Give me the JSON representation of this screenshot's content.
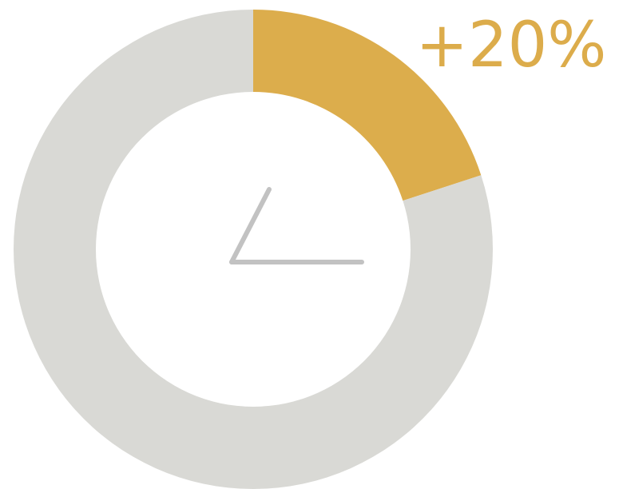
{
  "chart_data": {
    "type": "donut",
    "values": [
      20,
      80
    ],
    "colors": [
      "#dcad4c",
      "#d9d9d5"
    ],
    "value_labels": [
      "+20%",
      null
    ]
  }
}
